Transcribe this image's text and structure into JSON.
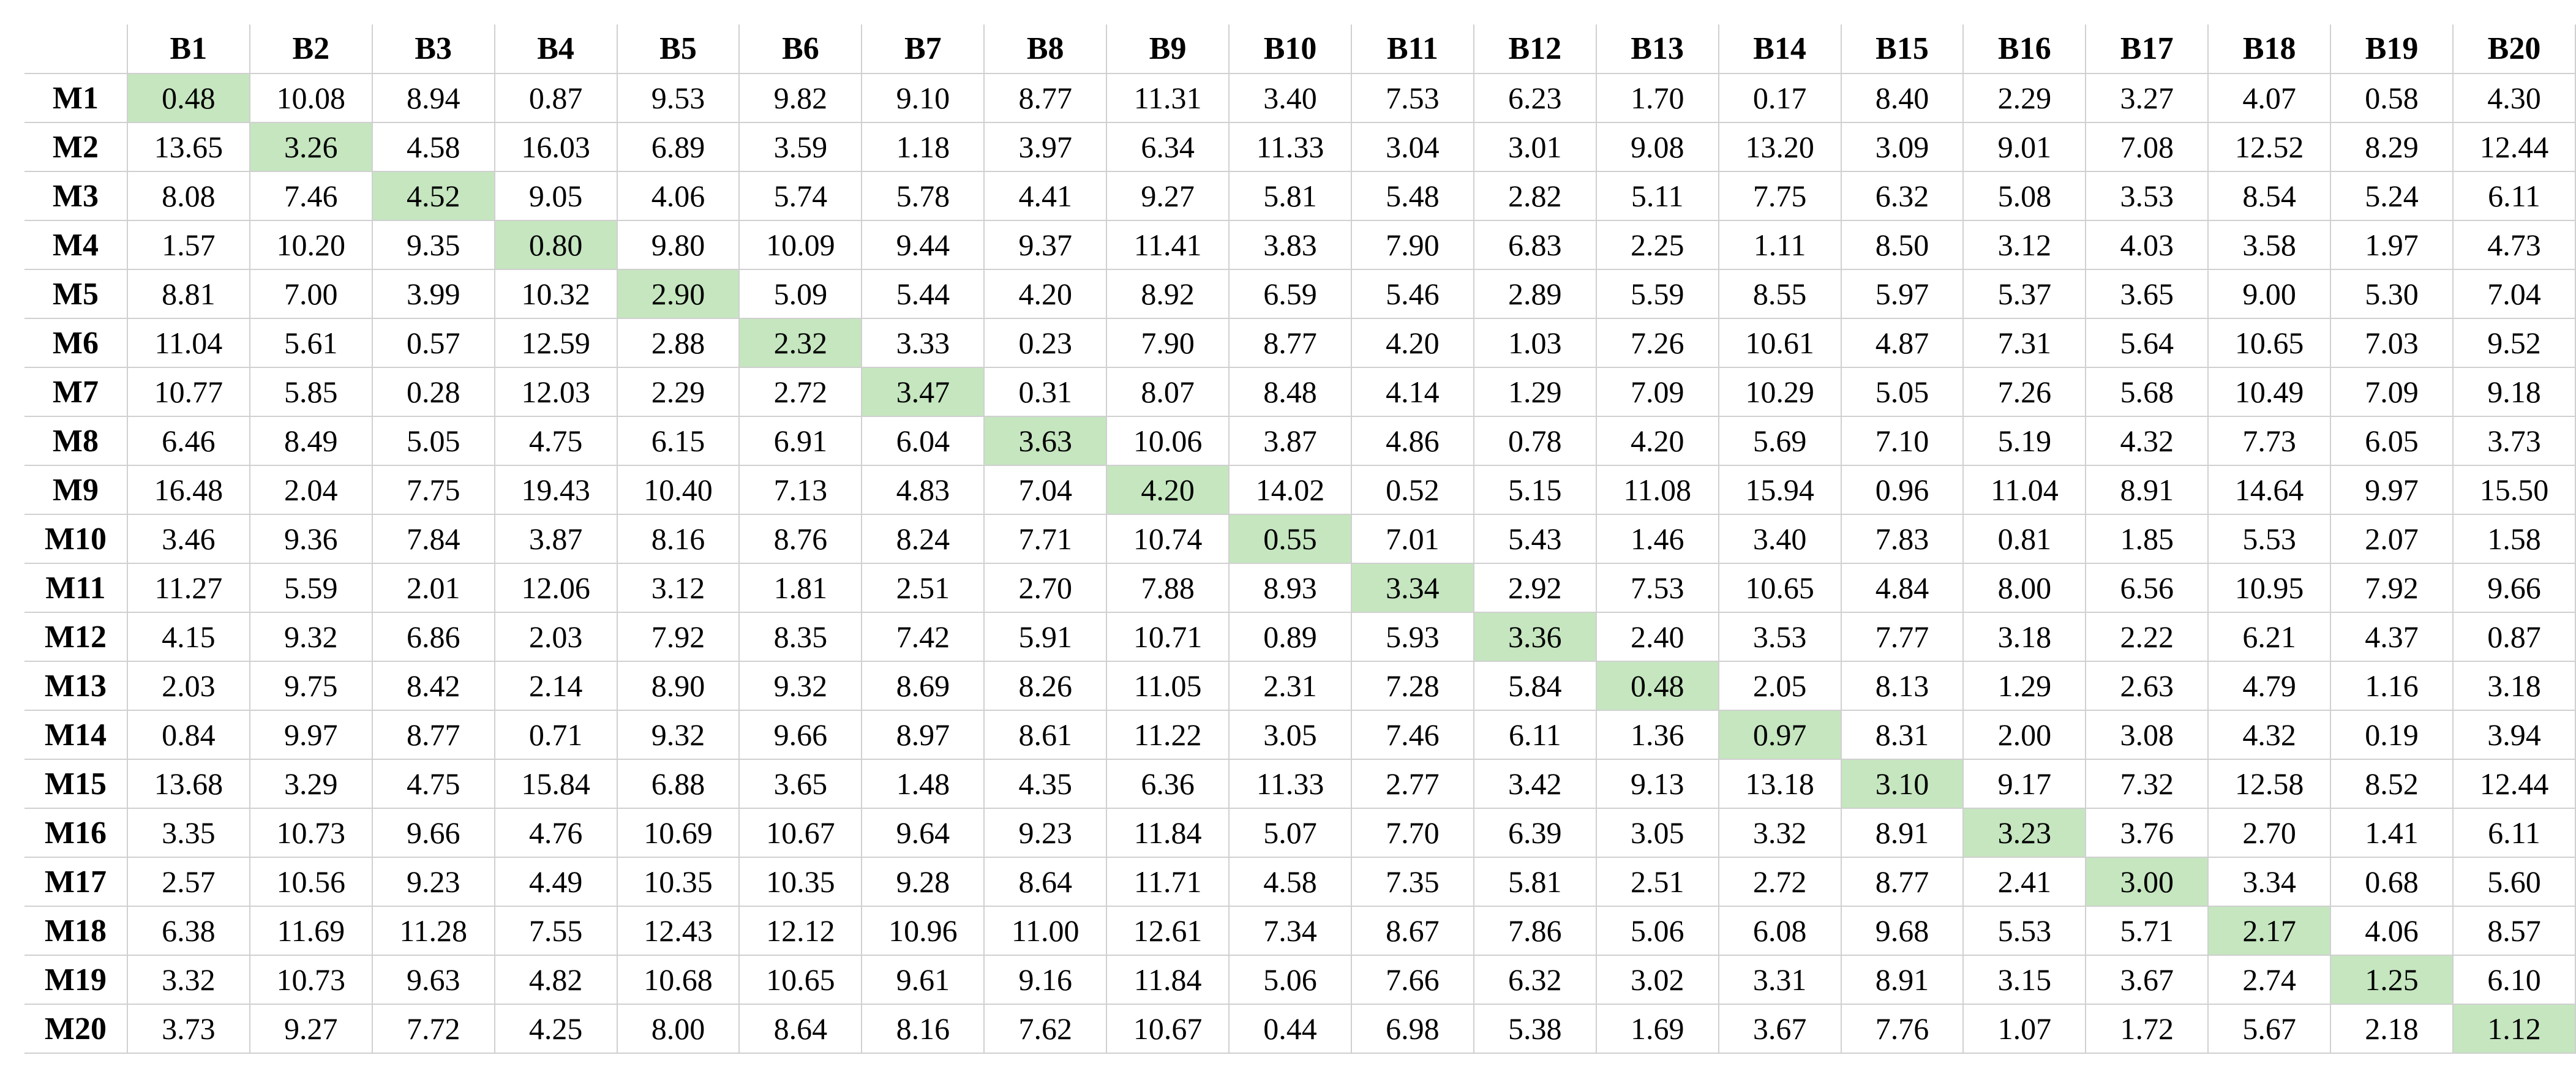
{
  "highlight_color": "#c5e6bf",
  "chart_data": {
    "type": "table",
    "title": "",
    "columns": [
      "B1",
      "B2",
      "B3",
      "B4",
      "B5",
      "B6",
      "B7",
      "B8",
      "B9",
      "B10",
      "B11",
      "B12",
      "B13",
      "B14",
      "B15",
      "B16",
      "B17",
      "B18",
      "B19",
      "B20"
    ],
    "rows": [
      {
        "label": "M1",
        "values": [
          "0.48",
          "10.08",
          "8.94",
          "0.87",
          "9.53",
          "9.82",
          "9.10",
          "8.77",
          "11.31",
          "3.40",
          "7.53",
          "6.23",
          "1.70",
          "0.17",
          "8.40",
          "2.29",
          "3.27",
          "4.07",
          "0.58",
          "4.30"
        ]
      },
      {
        "label": "M2",
        "values": [
          "13.65",
          "3.26",
          "4.58",
          "16.03",
          "6.89",
          "3.59",
          "1.18",
          "3.97",
          "6.34",
          "11.33",
          "3.04",
          "3.01",
          "9.08",
          "13.20",
          "3.09",
          "9.01",
          "7.08",
          "12.52",
          "8.29",
          "12.44"
        ]
      },
      {
        "label": "M3",
        "values": [
          "8.08",
          "7.46",
          "4.52",
          "9.05",
          "4.06",
          "5.74",
          "5.78",
          "4.41",
          "9.27",
          "5.81",
          "5.48",
          "2.82",
          "5.11",
          "7.75",
          "6.32",
          "5.08",
          "3.53",
          "8.54",
          "5.24",
          "6.11"
        ]
      },
      {
        "label": "M4",
        "values": [
          "1.57",
          "10.20",
          "9.35",
          "0.80",
          "9.80",
          "10.09",
          "9.44",
          "9.37",
          "11.41",
          "3.83",
          "7.90",
          "6.83",
          "2.25",
          "1.11",
          "8.50",
          "3.12",
          "4.03",
          "3.58",
          "1.97",
          "4.73"
        ]
      },
      {
        "label": "M5",
        "values": [
          "8.81",
          "7.00",
          "3.99",
          "10.32",
          "2.90",
          "5.09",
          "5.44",
          "4.20",
          "8.92",
          "6.59",
          "5.46",
          "2.89",
          "5.59",
          "8.55",
          "5.97",
          "5.37",
          "3.65",
          "9.00",
          "5.30",
          "7.04"
        ]
      },
      {
        "label": "M6",
        "values": [
          "11.04",
          "5.61",
          "0.57",
          "12.59",
          "2.88",
          "2.32",
          "3.33",
          "0.23",
          "7.90",
          "8.77",
          "4.20",
          "1.03",
          "7.26",
          "10.61",
          "4.87",
          "7.31",
          "5.64",
          "10.65",
          "7.03",
          "9.52"
        ]
      },
      {
        "label": "M7",
        "values": [
          "10.77",
          "5.85",
          "0.28",
          "12.03",
          "2.29",
          "2.72",
          "3.47",
          "0.31",
          "8.07",
          "8.48",
          "4.14",
          "1.29",
          "7.09",
          "10.29",
          "5.05",
          "7.26",
          "5.68",
          "10.49",
          "7.09",
          "9.18"
        ]
      },
      {
        "label": "M8",
        "values": [
          "6.46",
          "8.49",
          "5.05",
          "4.75",
          "6.15",
          "6.91",
          "6.04",
          "3.63",
          "10.06",
          "3.87",
          "4.86",
          "0.78",
          "4.20",
          "5.69",
          "7.10",
          "5.19",
          "4.32",
          "7.73",
          "6.05",
          "3.73"
        ]
      },
      {
        "label": "M9",
        "values": [
          "16.48",
          "2.04",
          "7.75",
          "19.43",
          "10.40",
          "7.13",
          "4.83",
          "7.04",
          "4.20",
          "14.02",
          "0.52",
          "5.15",
          "11.08",
          "15.94",
          "0.96",
          "11.04",
          "8.91",
          "14.64",
          "9.97",
          "15.50"
        ]
      },
      {
        "label": "M10",
        "values": [
          "3.46",
          "9.36",
          "7.84",
          "3.87",
          "8.16",
          "8.76",
          "8.24",
          "7.71",
          "10.74",
          "0.55",
          "7.01",
          "5.43",
          "1.46",
          "3.40",
          "7.83",
          "0.81",
          "1.85",
          "5.53",
          "2.07",
          "1.58"
        ]
      },
      {
        "label": "M11",
        "values": [
          "11.27",
          "5.59",
          "2.01",
          "12.06",
          "3.12",
          "1.81",
          "2.51",
          "2.70",
          "7.88",
          "8.93",
          "3.34",
          "2.92",
          "7.53",
          "10.65",
          "4.84",
          "8.00",
          "6.56",
          "10.95",
          "7.92",
          "9.66"
        ]
      },
      {
        "label": "M12",
        "values": [
          "4.15",
          "9.32",
          "6.86",
          "2.03",
          "7.92",
          "8.35",
          "7.42",
          "5.91",
          "10.71",
          "0.89",
          "5.93",
          "3.36",
          "2.40",
          "3.53",
          "7.77",
          "3.18",
          "2.22",
          "6.21",
          "4.37",
          "0.87"
        ]
      },
      {
        "label": "M13",
        "values": [
          "2.03",
          "9.75",
          "8.42",
          "2.14",
          "8.90",
          "9.32",
          "8.69",
          "8.26",
          "11.05",
          "2.31",
          "7.28",
          "5.84",
          "0.48",
          "2.05",
          "8.13",
          "1.29",
          "2.63",
          "4.79",
          "1.16",
          "3.18"
        ]
      },
      {
        "label": "M14",
        "values": [
          "0.84",
          "9.97",
          "8.77",
          "0.71",
          "9.32",
          "9.66",
          "8.97",
          "8.61",
          "11.22",
          "3.05",
          "7.46",
          "6.11",
          "1.36",
          "0.97",
          "8.31",
          "2.00",
          "3.08",
          "4.32",
          "0.19",
          "3.94"
        ]
      },
      {
        "label": "M15",
        "values": [
          "13.68",
          "3.29",
          "4.75",
          "15.84",
          "6.88",
          "3.65",
          "1.48",
          "4.35",
          "6.36",
          "11.33",
          "2.77",
          "3.42",
          "9.13",
          "13.18",
          "3.10",
          "9.17",
          "7.32",
          "12.58",
          "8.52",
          "12.44"
        ]
      },
      {
        "label": "M16",
        "values": [
          "3.35",
          "10.73",
          "9.66",
          "4.76",
          "10.69",
          "10.67",
          "9.64",
          "9.23",
          "11.84",
          "5.07",
          "7.70",
          "6.39",
          "3.05",
          "3.32",
          "8.91",
          "3.23",
          "3.76",
          "2.70",
          "1.41",
          "6.11"
        ]
      },
      {
        "label": "M17",
        "values": [
          "2.57",
          "10.56",
          "9.23",
          "4.49",
          "10.35",
          "10.35",
          "9.28",
          "8.64",
          "11.71",
          "4.58",
          "7.35",
          "5.81",
          "2.51",
          "2.72",
          "8.77",
          "2.41",
          "3.00",
          "3.34",
          "0.68",
          "5.60"
        ]
      },
      {
        "label": "M18",
        "values": [
          "6.38",
          "11.69",
          "11.28",
          "7.55",
          "12.43",
          "12.12",
          "10.96",
          "11.00",
          "12.61",
          "7.34",
          "8.67",
          "7.86",
          "5.06",
          "6.08",
          "9.68",
          "5.53",
          "5.71",
          "2.17",
          "4.06",
          "8.57"
        ]
      },
      {
        "label": "M19",
        "values": [
          "3.32",
          "10.73",
          "9.63",
          "4.82",
          "10.68",
          "10.65",
          "9.61",
          "9.16",
          "11.84",
          "5.06",
          "7.66",
          "6.32",
          "3.02",
          "3.31",
          "8.91",
          "3.15",
          "3.67",
          "2.74",
          "1.25",
          "6.10"
        ]
      },
      {
        "label": "M20",
        "values": [
          "3.73",
          "9.27",
          "7.72",
          "4.25",
          "8.00",
          "8.64",
          "8.16",
          "7.62",
          "10.67",
          "0.44",
          "6.98",
          "5.38",
          "1.69",
          "3.67",
          "7.76",
          "1.07",
          "1.72",
          "5.67",
          "2.18",
          "1.12"
        ]
      }
    ],
    "highlighted": "diagonal"
  }
}
